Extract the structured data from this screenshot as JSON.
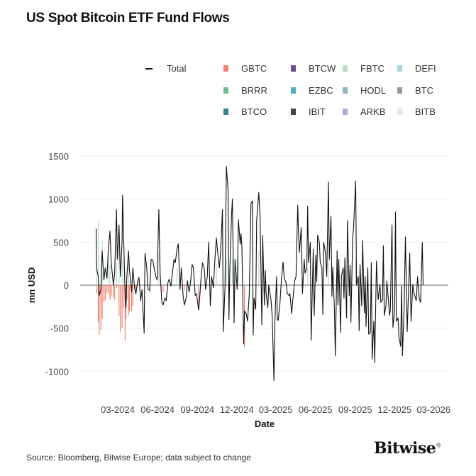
{
  "title": "US Spot Bitcoin ETF Fund Flows",
  "source": "Source: Bloomberg, Bitwise Europe; data subject to change",
  "logo": "Bitwise",
  "legend": [
    {
      "name": "Total",
      "type": "line",
      "color": "#111111"
    },
    {
      "name": "GBTC",
      "color": "#f08070"
    },
    {
      "name": "BTCW",
      "color": "#6b4f8f"
    },
    {
      "name": "FBTC",
      "color": "#b9dcc5"
    },
    {
      "name": "DEFI",
      "color": "#a9d6dc"
    },
    {
      "name": "BRRR",
      "color": "#6fbf8f"
    },
    {
      "name": "EZBC",
      "color": "#4fb2bb"
    },
    {
      "name": "HODL",
      "color": "#8ab8b8"
    },
    {
      "name": "BTC",
      "color": "#999999"
    },
    {
      "name": "BTCO",
      "color": "#3b7f88"
    },
    {
      "name": "IBIT",
      "color": "#444444"
    },
    {
      "name": "ARKB",
      "color": "#b7a6cc"
    },
    {
      "name": "BITB",
      "color": "#d8ece6"
    }
  ],
  "chart_data": {
    "type": "bar",
    "xlabel": "Date",
    "ylabel": "mn USD",
    "ylim": [
      -1250,
      1550
    ],
    "yticks": [
      1500,
      1000,
      500,
      0,
      -500,
      -1000
    ],
    "xticks": [
      "03-2024",
      "06-2024",
      "09-2024",
      "12-2024",
      "03-2025",
      "06-2025",
      "09-2025",
      "12-2025",
      "03-2026"
    ],
    "xtick_dates": [
      "2024-03-01",
      "2024-06-01",
      "2024-09-01",
      "2024-12-01",
      "2025-03-01",
      "2025-06-01",
      "2025-09-01",
      "2025-12-01",
      "2026-03-01"
    ],
    "grid": true,
    "legend_position": "top-right",
    "total": [
      [
        "2024-01-11",
        655
      ],
      [
        "2024-01-12",
        200
      ],
      [
        "2024-01-16",
        100
      ],
      [
        "2024-01-18",
        -120
      ],
      [
        "2024-01-22",
        -50
      ],
      [
        "2024-01-25",
        400
      ],
      [
        "2024-01-29",
        60
      ],
      [
        "2024-02-01",
        200
      ],
      [
        "2024-02-05",
        80
      ],
      [
        "2024-02-08",
        400
      ],
      [
        "2024-02-12",
        630
      ],
      [
        "2024-02-15",
        250
      ],
      [
        "2024-02-20",
        0
      ],
      [
        "2024-02-23",
        150
      ],
      [
        "2024-02-27",
        880
      ],
      [
        "2024-02-29",
        300
      ],
      [
        "2024-03-04",
        700
      ],
      [
        "2024-03-07",
        100
      ],
      [
        "2024-03-11",
        500
      ],
      [
        "2024-03-12",
        1045
      ],
      [
        "2024-03-14",
        700
      ],
      [
        "2024-03-18",
        -150
      ],
      [
        "2024-03-20",
        -260
      ],
      [
        "2024-03-22",
        100
      ],
      [
        "2024-03-26",
        400
      ],
      [
        "2024-03-28",
        180
      ],
      [
        "2024-04-02",
        -80
      ],
      [
        "2024-04-05",
        200
      ],
      [
        "2024-04-09",
        -40
      ],
      [
        "2024-04-12",
        -100
      ],
      [
        "2024-04-16",
        50
      ],
      [
        "2024-04-19",
        90
      ],
      [
        "2024-04-23",
        -180
      ],
      [
        "2024-04-26",
        -50
      ],
      [
        "2024-05-01",
        -560
      ],
      [
        "2024-05-03",
        370
      ],
      [
        "2024-05-07",
        200
      ],
      [
        "2024-05-10",
        -50
      ],
      [
        "2024-05-14",
        -60
      ],
      [
        "2024-05-17",
        300
      ],
      [
        "2024-05-21",
        290
      ],
      [
        "2024-05-24",
        200
      ],
      [
        "2024-05-28",
        100
      ],
      [
        "2024-05-31",
        60
      ],
      [
        "2024-06-04",
        880
      ],
      [
        "2024-06-07",
        130
      ],
      [
        "2024-06-11",
        -200
      ],
      [
        "2024-06-14",
        -230
      ],
      [
        "2024-06-18",
        -150
      ],
      [
        "2024-06-21",
        -180
      ],
      [
        "2024-06-25",
        30
      ],
      [
        "2024-06-28",
        70
      ],
      [
        "2024-07-02",
        -10
      ],
      [
        "2024-07-05",
        120
      ],
      [
        "2024-07-09",
        300
      ],
      [
        "2024-07-12",
        260
      ],
      [
        "2024-07-16",
        420
      ],
      [
        "2024-07-19",
        480
      ],
      [
        "2024-07-23",
        -50
      ],
      [
        "2024-07-26",
        200
      ],
      [
        "2024-07-30",
        -120
      ],
      [
        "2024-08-02",
        -230
      ],
      [
        "2024-08-06",
        -150
      ],
      [
        "2024-08-09",
        50
      ],
      [
        "2024-08-13",
        -80
      ],
      [
        "2024-08-16",
        30
      ],
      [
        "2024-08-20",
        240
      ],
      [
        "2024-08-23",
        200
      ],
      [
        "2024-08-27",
        -120
      ],
      [
        "2024-08-30",
        -100
      ],
      [
        "2024-09-04",
        -290
      ],
      [
        "2024-09-06",
        -170
      ],
      [
        "2024-09-10",
        120
      ],
      [
        "2024-09-13",
        260
      ],
      [
        "2024-09-17",
        190
      ],
      [
        "2024-09-20",
        -50
      ],
      [
        "2024-09-24",
        100
      ],
      [
        "2024-09-27",
        500
      ],
      [
        "2024-10-01",
        -240
      ],
      [
        "2024-10-04",
        100
      ],
      [
        "2024-10-08",
        -30
      ],
      [
        "2024-10-11",
        250
      ],
      [
        "2024-10-15",
        550
      ],
      [
        "2024-10-18",
        380
      ],
      [
        "2024-10-22",
        200
      ],
      [
        "2024-10-25",
        400
      ],
      [
        "2024-10-29",
        880
      ],
      [
        "2024-10-31",
        -540
      ],
      [
        "2024-11-04",
        -20
      ],
      [
        "2024-11-07",
        1380
      ],
      [
        "2024-11-11",
        1110
      ],
      [
        "2024-11-13",
        -400
      ],
      [
        "2024-11-15",
        150
      ],
      [
        "2024-11-19",
        820
      ],
      [
        "2024-11-21",
        1000
      ],
      [
        "2024-11-25",
        -440
      ],
      [
        "2024-11-27",
        300
      ],
      [
        "2024-12-02",
        -50
      ],
      [
        "2024-12-05",
        760
      ],
      [
        "2024-12-09",
        480
      ],
      [
        "2024-12-11",
        600
      ],
      [
        "2024-12-13",
        450
      ],
      [
        "2024-12-17",
        -680
      ],
      [
        "2024-12-19",
        -300
      ],
      [
        "2024-12-23",
        -330
      ],
      [
        "2024-12-26",
        -420
      ],
      [
        "2024-12-30",
        -100
      ],
      [
        "2025-01-03",
        950
      ],
      [
        "2025-01-06",
        980
      ],
      [
        "2025-01-08",
        -580
      ],
      [
        "2025-01-10",
        -150
      ],
      [
        "2025-01-14",
        -280
      ],
      [
        "2025-01-16",
        750
      ],
      [
        "2025-01-21",
        1080
      ],
      [
        "2025-01-24",
        800
      ],
      [
        "2025-01-28",
        -460
      ],
      [
        "2025-01-30",
        580
      ],
      [
        "2025-02-03",
        -230
      ],
      [
        "2025-02-05",
        170
      ],
      [
        "2025-02-07",
        -100
      ],
      [
        "2025-02-11",
        -260
      ],
      [
        "2025-02-13",
        0
      ],
      [
        "2025-02-18",
        -160
      ],
      [
        "2025-02-21",
        -360
      ],
      [
        "2025-02-25",
        -1110
      ],
      [
        "2025-02-27",
        -460
      ],
      [
        "2025-03-03",
        100
      ],
      [
        "2025-03-05",
        -400
      ],
      [
        "2025-03-07",
        -410
      ],
      [
        "2025-03-11",
        -200
      ],
      [
        "2025-03-14",
        40
      ],
      [
        "2025-03-18",
        270
      ],
      [
        "2025-03-21",
        80
      ],
      [
        "2025-03-25",
        30
      ],
      [
        "2025-03-28",
        -100
      ],
      [
        "2025-04-01",
        -120
      ],
      [
        "2025-04-03",
        -100
      ],
      [
        "2025-04-07",
        -330
      ],
      [
        "2025-04-10",
        -150
      ],
      [
        "2025-04-14",
        50
      ],
      [
        "2025-04-17",
        100
      ],
      [
        "2025-04-21",
        930
      ],
      [
        "2025-04-23",
        600
      ],
      [
        "2025-04-25",
        380
      ],
      [
        "2025-04-29",
        670
      ],
      [
        "2025-05-02",
        -100
      ],
      [
        "2025-05-06",
        300
      ],
      [
        "2025-05-08",
        140
      ],
      [
        "2025-05-12",
        200
      ],
      [
        "2025-05-14",
        920
      ],
      [
        "2025-05-16",
        260
      ],
      [
        "2025-05-20",
        500
      ],
      [
        "2025-05-22",
        -640
      ],
      [
        "2025-05-27",
        420
      ],
      [
        "2025-05-29",
        -350
      ],
      [
        "2025-06-02",
        350
      ],
      [
        "2025-06-04",
        40
      ],
      [
        "2025-06-06",
        580
      ],
      [
        "2025-06-10",
        500
      ],
      [
        "2025-06-12",
        270
      ],
      [
        "2025-06-16",
        200
      ],
      [
        "2025-06-18",
        -340
      ],
      [
        "2025-06-20",
        500
      ],
      [
        "2025-06-24",
        380
      ],
      [
        "2025-06-27",
        100
      ],
      [
        "2025-07-01",
        1200
      ],
      [
        "2025-07-03",
        300
      ],
      [
        "2025-07-07",
        800
      ],
      [
        "2025-07-09",
        -130
      ],
      [
        "2025-07-11",
        210
      ],
      [
        "2025-07-15",
        -300
      ],
      [
        "2025-07-17",
        -820
      ],
      [
        "2025-07-21",
        400
      ],
      [
        "2025-07-23",
        -230
      ],
      [
        "2025-07-25",
        300
      ],
      [
        "2025-07-29",
        -550
      ],
      [
        "2025-07-31",
        100
      ],
      [
        "2025-08-04",
        200
      ],
      [
        "2025-08-06",
        -150
      ],
      [
        "2025-08-08",
        320
      ],
      [
        "2025-08-12",
        -380
      ],
      [
        "2025-08-14",
        750
      ],
      [
        "2025-08-18",
        -120
      ],
      [
        "2025-08-20",
        230
      ],
      [
        "2025-08-22",
        -430
      ],
      [
        "2025-08-26",
        540
      ],
      [
        "2025-08-28",
        670
      ],
      [
        "2025-09-02",
        1210
      ],
      [
        "2025-09-04",
        0
      ],
      [
        "2025-09-08",
        100
      ],
      [
        "2025-09-10",
        -530
      ],
      [
        "2025-09-12",
        240
      ],
      [
        "2025-09-16",
        -240
      ],
      [
        "2025-09-18",
        520
      ],
      [
        "2025-09-22",
        -320
      ],
      [
        "2025-09-24",
        100
      ],
      [
        "2025-09-26",
        -480
      ],
      [
        "2025-09-30",
        200
      ],
      [
        "2025-10-02",
        -570
      ],
      [
        "2025-10-06",
        -550
      ],
      [
        "2025-10-08",
        260
      ],
      [
        "2025-10-10",
        -860
      ],
      [
        "2025-10-14",
        -420
      ],
      [
        "2025-10-16",
        -900
      ],
      [
        "2025-10-20",
        280
      ],
      [
        "2025-10-22",
        30
      ],
      [
        "2025-10-24",
        -170
      ],
      [
        "2025-10-28",
        10
      ],
      [
        "2025-10-30",
        -200
      ],
      [
        "2025-11-03",
        -170
      ],
      [
        "2025-11-05",
        460
      ],
      [
        "2025-11-07",
        -350
      ],
      [
        "2025-11-11",
        -240
      ],
      [
        "2025-11-13",
        50
      ],
      [
        "2025-11-17",
        -200
      ],
      [
        "2025-11-19",
        -350
      ],
      [
        "2025-11-21",
        -300
      ],
      [
        "2025-11-25",
        700
      ],
      [
        "2025-11-27",
        -490
      ],
      [
        "2025-12-01",
        -300
      ],
      [
        "2025-12-03",
        850
      ],
      [
        "2025-12-05",
        -420
      ],
      [
        "2025-12-09",
        -380
      ],
      [
        "2025-12-11",
        -600
      ],
      [
        "2025-12-15",
        -710
      ],
      [
        "2025-12-17",
        -10
      ],
      [
        "2025-12-19",
        -820
      ],
      [
        "2025-12-23",
        -250
      ],
      [
        "2025-12-26",
        560
      ],
      [
        "2025-12-30",
        -540
      ],
      [
        "2026-01-05",
        370
      ],
      [
        "2026-01-08",
        -420
      ],
      [
        "2026-01-12",
        10
      ],
      [
        "2026-01-15",
        -100
      ],
      [
        "2026-01-20",
        -180
      ],
      [
        "2026-01-23",
        100
      ],
      [
        "2026-01-27",
        -160
      ],
      [
        "2026-01-30",
        -200
      ],
      [
        "2026-02-03",
        500
      ],
      [
        "2026-02-05",
        0
      ]
    ],
    "series": [
      {
        "name": "GBTC",
        "values": [
          [
            "2024-01-12",
            -95
          ],
          [
            "2024-01-16",
            -430
          ],
          [
            "2024-01-18",
            -580
          ],
          [
            "2024-01-22",
            -520
          ],
          [
            "2024-01-25",
            -390
          ],
          [
            "2024-01-29",
            -190
          ],
          [
            "2024-02-01",
            -180
          ],
          [
            "2024-02-05",
            -100
          ],
          [
            "2024-02-08",
            -90
          ],
          [
            "2024-02-12",
            -170
          ],
          [
            "2024-02-15",
            -130
          ],
          [
            "2024-02-20",
            -140
          ],
          [
            "2024-02-23",
            -170
          ],
          [
            "2024-02-27",
            -30
          ],
          [
            "2024-03-04",
            -360
          ],
          [
            "2024-03-07",
            -540
          ],
          [
            "2024-03-11",
            -495
          ],
          [
            "2024-03-14",
            -260
          ],
          [
            "2024-03-18",
            -640
          ],
          [
            "2024-03-20",
            -390
          ],
          [
            "2024-03-22",
            -170
          ],
          [
            "2024-03-26",
            -350
          ],
          [
            "2024-03-28",
            -300
          ],
          [
            "2024-04-02",
            -300
          ],
          [
            "2024-04-05",
            -240
          ],
          [
            "2024-04-09",
            -30
          ],
          [
            "2024-04-12",
            -110
          ],
          [
            "2024-05-14",
            -90
          ],
          [
            "2024-06-14",
            -80
          ],
          [
            "2024-08-02",
            -60
          ],
          [
            "2024-09-04",
            -290
          ],
          [
            "2024-11-25",
            -90
          ],
          [
            "2024-12-19",
            -720
          ]
        ]
      },
      {
        "name": "FBTC",
        "values": [
          [
            "2024-01-12",
            230
          ],
          [
            "2024-01-16",
            750
          ],
          [
            "2024-01-25",
            520
          ],
          [
            "2024-02-08",
            350
          ],
          [
            "2024-02-12",
            240
          ],
          [
            "2024-02-27",
            240
          ],
          [
            "2024-03-04",
            400
          ],
          [
            "2024-03-12",
            280
          ],
          [
            "2024-03-26",
            260
          ],
          [
            "2024-06-04",
            380
          ],
          [
            "2024-07-16",
            200
          ],
          [
            "2024-10-15",
            240
          ],
          [
            "2024-11-07",
            300
          ],
          [
            "2024-11-21",
            300
          ],
          [
            "2024-12-05",
            300
          ],
          [
            "2025-01-21",
            400
          ],
          [
            "2025-05-14",
            200
          ],
          [
            "2025-07-01",
            300
          ],
          [
            "2025-09-02",
            300
          ]
        ]
      }
    ]
  }
}
